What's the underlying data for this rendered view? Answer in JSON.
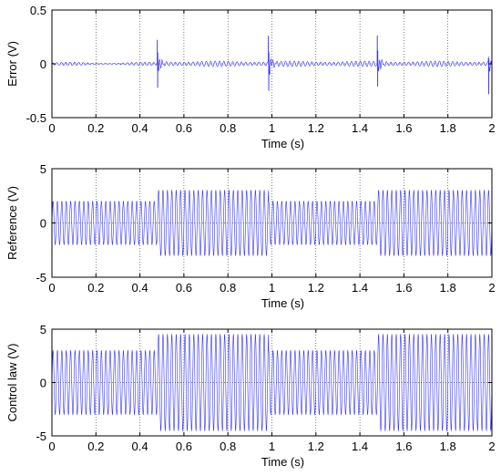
{
  "chart_data": [
    {
      "type": "line",
      "title": "",
      "xlabel": "Time (s)",
      "ylabel": "Error (V)",
      "xlim": [
        0,
        2
      ],
      "ylim": [
        -0.5,
        0.5
      ],
      "xticks": [
        0,
        0.2,
        0.4,
        0.6,
        0.8,
        1,
        1.2,
        1.4,
        1.6,
        1.8,
        2
      ],
      "xtick_labels": [
        "0",
        "0.2",
        "0.4",
        "0.6",
        "0.8",
        "1",
        "1.2",
        "1.4",
        "1.6",
        "1.8",
        "2"
      ],
      "yticks": [
        -0.5,
        0,
        0.5
      ],
      "ytick_labels": [
        "-0.5",
        "0",
        "0.5"
      ],
      "grid": true,
      "color": "#3333ff",
      "series": [
        {
          "signal": "sine-modulated error with transient spikes",
          "baseline_ripple": 0.015,
          "spikes": [
            {
              "t": 0.48,
              "peak": 0.22,
              "trough": -0.22
            },
            {
              "t": 0.985,
              "peak": 0.25,
              "trough": -0.25
            },
            {
              "t": 1.48,
              "peak": 0.25,
              "trough": -0.22
            },
            {
              "t": 1.985,
              "peak": 0.04,
              "trough": -0.28
            }
          ]
        }
      ]
    },
    {
      "type": "line",
      "title": "",
      "xlabel": "Time (s)",
      "ylabel": "Reference (V)",
      "xlim": [
        0,
        2
      ],
      "ylim": [
        -5,
        5
      ],
      "xticks": [
        0,
        0.2,
        0.4,
        0.6,
        0.8,
        1,
        1.2,
        1.4,
        1.6,
        1.8,
        2
      ],
      "xtick_labels": [
        "0",
        "0.2",
        "0.4",
        "0.6",
        "0.8",
        "1",
        "1.2",
        "1.4",
        "1.6",
        "1.8",
        "2"
      ],
      "yticks": [
        -5,
        0,
        5
      ],
      "ytick_labels": [
        "-5",
        "0",
        "5"
      ],
      "grid": true,
      "color": "#3333ff",
      "series": [
        {
          "signal": "sinusoid with piecewise amplitude",
          "frequency_hz": 50,
          "segments": [
            {
              "t_start": 0,
              "t_end": 0.48,
              "amplitude": 2
            },
            {
              "t_start": 0.48,
              "t_end": 0.985,
              "amplitude": 3
            },
            {
              "t_start": 0.985,
              "t_end": 1.48,
              "amplitude": 2
            },
            {
              "t_start": 1.48,
              "t_end": 2,
              "amplitude": 3
            }
          ]
        }
      ]
    },
    {
      "type": "line",
      "title": "",
      "xlabel": "Time (s)",
      "ylabel": "Control law (V)",
      "xlim": [
        0,
        2
      ],
      "ylim": [
        -5,
        5
      ],
      "xticks": [
        0,
        0.2,
        0.4,
        0.6,
        0.8,
        1,
        1.2,
        1.4,
        1.6,
        1.8,
        2
      ],
      "xtick_labels": [
        "0",
        "0.2",
        "0.4",
        "0.6",
        "0.8",
        "1",
        "1.2",
        "1.4",
        "1.6",
        "1.8",
        "2"
      ],
      "yticks": [
        -5,
        0,
        5
      ],
      "ytick_labels": [
        "-5",
        "0",
        "5"
      ],
      "grid": true,
      "color": "#3333ff",
      "series": [
        {
          "signal": "sinusoid with piecewise amplitude",
          "frequency_hz": 50,
          "segments": [
            {
              "t_start": 0,
              "t_end": 0.48,
              "amplitude": 3
            },
            {
              "t_start": 0.48,
              "t_end": 0.985,
              "amplitude": 4.5
            },
            {
              "t_start": 0.985,
              "t_end": 1.48,
              "amplitude": 3
            },
            {
              "t_start": 1.48,
              "t_end": 2,
              "amplitude": 4.5
            }
          ]
        }
      ]
    }
  ]
}
